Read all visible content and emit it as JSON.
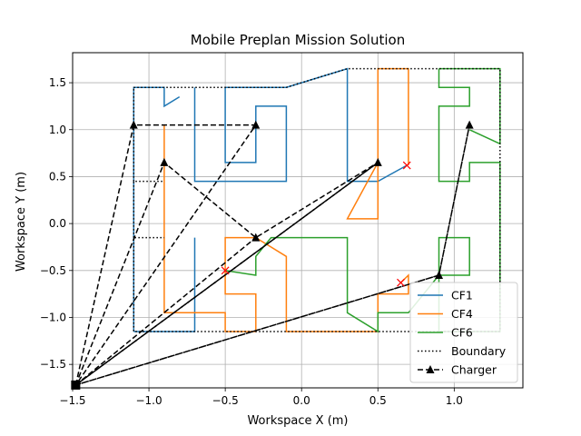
{
  "chart_data": {
    "type": "line",
    "title": "Mobile Preplan Mission Solution",
    "xlabel": "Workspace X (m)",
    "ylabel": "Workspace Y (m)",
    "xlim": [
      -1.5,
      1.45
    ],
    "ylim": [
      -1.75,
      1.82
    ],
    "xticks": [
      -1.5,
      -1.0,
      -0.5,
      0.0,
      0.5,
      1.0
    ],
    "xtick_labels": [
      "−1.5",
      "−1.0",
      "−0.5",
      "0.0",
      "0.5",
      "1.0"
    ],
    "yticks": [
      -1.5,
      -1.0,
      -0.5,
      0.0,
      0.5,
      1.0,
      1.5
    ],
    "ytick_labels": [
      "−1.5",
      "−1.0",
      "−0.5",
      "0.0",
      "0.5",
      "1.0",
      "1.5"
    ],
    "grid": true,
    "legend_position": "lower-right",
    "series": [
      {
        "name": "CF1",
        "color": "#1f77b4",
        "style": "solid",
        "segments": [
          [
            [
              -1.1,
              -1.15
            ],
            [
              -1.1,
              1.45
            ],
            [
              -0.9,
              1.45
            ],
            [
              -0.9,
              1.25
            ],
            [
              -0.8,
              1.35
            ]
          ],
          [
            [
              -0.7,
              1.45
            ],
            [
              -0.7,
              0.45
            ],
            [
              -0.1,
              0.45
            ],
            [
              -0.1,
              1.25
            ],
            [
              -0.3,
              1.25
            ],
            [
              -0.3,
              0.65
            ],
            [
              -0.5,
              0.65
            ],
            [
              -0.5,
              1.45
            ],
            [
              -0.1,
              1.45
            ],
            [
              0.3,
              1.65
            ],
            [
              0.3,
              0.45
            ],
            [
              0.5,
              0.45
            ],
            [
              0.69,
              0.62
            ]
          ],
          [
            [
              -1.1,
              -1.15
            ],
            [
              -0.7,
              -1.15
            ],
            [
              -0.7,
              -0.15
            ]
          ]
        ]
      },
      {
        "name": "CF4",
        "color": "#ff7f0e",
        "style": "solid",
        "segments": [
          [
            [
              -0.9,
              1.05
            ],
            [
              -0.9,
              -0.95
            ],
            [
              -0.5,
              -0.95
            ],
            [
              -0.5,
              -1.15
            ],
            [
              -0.3,
              -1.15
            ],
            [
              -0.3,
              -0.75
            ],
            [
              -0.5,
              -0.75
            ],
            [
              -0.5,
              -0.15
            ],
            [
              -0.3,
              -0.15
            ],
            [
              -0.1,
              -0.35
            ],
            [
              -0.1,
              -1.15
            ],
            [
              0.5,
              -1.15
            ],
            [
              0.5,
              -0.75
            ],
            [
              0.7,
              -0.75
            ],
            [
              0.7,
              -0.55
            ],
            [
              0.65,
              -0.63
            ]
          ],
          [
            [
              0.5,
              0.65
            ],
            [
              0.3,
              0.05
            ],
            [
              0.5,
              0.05
            ],
            [
              0.5,
              1.65
            ],
            [
              0.7,
              1.65
            ],
            [
              0.7,
              0.62
            ]
          ],
          [
            [
              0.5,
              -0.95
            ],
            [
              0.7,
              -0.95
            ]
          ]
        ]
      },
      {
        "name": "CF6",
        "color": "#2ca02c",
        "style": "solid",
        "segments": [
          [
            [
              -0.5,
              -0.5
            ],
            [
              -0.3,
              -0.55
            ],
            [
              -0.3,
              -0.35
            ],
            [
              -0.2,
              -0.15
            ],
            [
              0.3,
              -0.15
            ],
            [
              0.3,
              -0.95
            ],
            [
              0.5,
              -1.15
            ],
            [
              0.5,
              -0.95
            ],
            [
              0.7,
              -0.95
            ],
            [
              0.9,
              -0.55
            ]
          ],
          [
            [
              0.9,
              1.65
            ],
            [
              1.3,
              1.65
            ],
            [
              1.3,
              0.85
            ],
            [
              1.1,
              1.0
            ]
          ],
          [
            [
              0.9,
              1.65
            ],
            [
              0.9,
              1.45
            ],
            [
              1.1,
              1.45
            ],
            [
              1.1,
              1.25
            ],
            [
              0.9,
              1.25
            ],
            [
              0.9,
              0.45
            ],
            [
              1.1,
              0.45
            ],
            [
              1.1,
              0.65
            ],
            [
              1.3,
              0.65
            ],
            [
              1.3,
              -1.15
            ],
            [
              0.9,
              -1.15
            ],
            [
              0.9,
              -0.55
            ],
            [
              1.1,
              -0.55
            ],
            [
              1.1,
              -0.15
            ],
            [
              0.9,
              -0.15
            ],
            [
              0.9,
              -0.55
            ]
          ]
        ]
      },
      {
        "name": "Boundary",
        "color": "#000000",
        "style": "dotted",
        "segments": [
          [
            [
              -1.1,
              1.45
            ],
            [
              -0.1,
              1.45
            ],
            [
              0.3,
              1.65
            ],
            [
              1.3,
              1.65
            ],
            [
              1.3,
              -1.15
            ],
            [
              -1.1,
              -1.15
            ],
            [
              -1.1,
              -0.15
            ],
            [
              -0.9,
              -0.15
            ]
          ],
          [
            [
              -1.1,
              -0.15
            ],
            [
              -1.1,
              0.45
            ],
            [
              -0.9,
              0.45
            ]
          ],
          [
            [
              -1.1,
              0.45
            ],
            [
              -1.1,
              1.45
            ]
          ]
        ]
      },
      {
        "name": "Charger",
        "color": "#000000",
        "style": "dashed",
        "marker": "triangle",
        "segments": [
          [
            [
              -1.48,
              -1.72
            ],
            [
              -1.1,
              1.05
            ],
            [
              -0.3,
              1.05
            ],
            [
              -1.48,
              -1.72
            ]
          ],
          [
            [
              -1.48,
              -1.72
            ],
            [
              -0.9,
              0.65
            ],
            [
              -0.3,
              -0.15
            ],
            [
              0.5,
              0.65
            ],
            [
              -1.48,
              -1.72
            ]
          ],
          [
            [
              -1.48,
              -1.72
            ],
            [
              0.5,
              0.65
            ]
          ],
          [
            [
              -1.48,
              -1.72
            ],
            [
              -0.3,
              -0.15
            ]
          ],
          [
            [
              -1.48,
              -1.72
            ],
            [
              0.9,
              -0.55
            ],
            [
              1.1,
              1.05
            ],
            [
              0.9,
              -0.55
            ],
            [
              -1.48,
              -1.72
            ]
          ]
        ],
        "markers": [
          [
            -1.1,
            1.05
          ],
          [
            -0.3,
            1.05
          ],
          [
            -0.9,
            0.65
          ],
          [
            -0.3,
            -0.15
          ],
          [
            0.5,
            0.65
          ],
          [
            0.9,
            -0.55
          ],
          [
            1.1,
            1.05
          ]
        ]
      }
    ],
    "depot": [
      -1.48,
      -1.72
    ],
    "x_markers": {
      "color": "#ff0000",
      "points": [
        [
          0.69,
          0.62
        ],
        [
          -0.5,
          -0.5
        ],
        [
          0.65,
          -0.63
        ]
      ]
    }
  }
}
